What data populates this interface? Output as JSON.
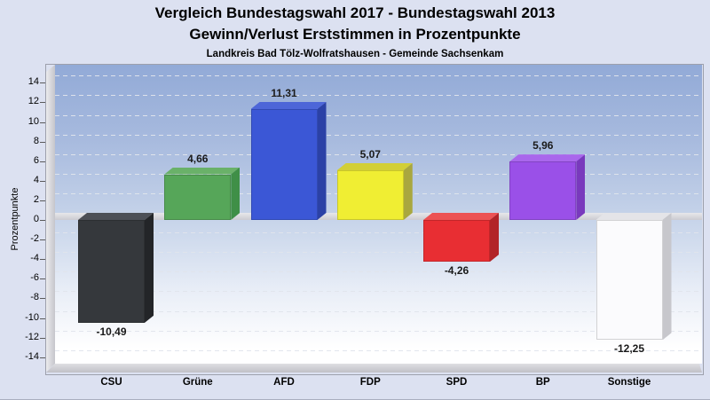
{
  "header": {
    "title_line1": "Vergleich Bundestagswahl 2017 - Bundestagswahl 2013",
    "title_line2": "Gewinn/Verlust Erststimmen in Prozentpunkte",
    "subtitle": "Landkreis Bad Tölz-Wolfratshausen - Gemeinde Sachsenkam"
  },
  "chart_data": {
    "type": "bar",
    "projection": "3d-column",
    "title": "Vergleich Bundestagswahl 2017 - Bundestagswahl 2013",
    "subtitle2": "Gewinn/Verlust Erststimmen in Prozentpunkte",
    "subtitle3": "Landkreis Bad Tölz-Wolfratshausen - Gemeinde Sachsenkam",
    "categories": [
      "CSU",
      "Grüne",
      "AFD",
      "FDP",
      "SPD",
      "BP",
      "Sonstige"
    ],
    "values": [
      -10.49,
      4.66,
      11.31,
      5.07,
      -4.26,
      5.96,
      -12.25
    ],
    "value_labels": [
      "-10,49",
      "4,66",
      "11,31",
      "5,07",
      "-4,26",
      "5,96",
      "-12,25"
    ],
    "ylabel": "Prozentpunkte",
    "xlabel": "",
    "y_ticks": [
      14,
      12,
      10,
      8,
      6,
      4,
      2,
      0,
      -2,
      -4,
      -6,
      -8,
      -10,
      -12,
      -14
    ],
    "ylim": [
      -15.2,
      15.2
    ],
    "grid": "dashed-horizontal",
    "legend": "none",
    "bar_styles": [
      {
        "party": "CSU",
        "slug": "csu",
        "front": "#35383c",
        "top": "#4d5057",
        "side": "#232528"
      },
      {
        "party": "Grüne",
        "slug": "gruene",
        "front": "#56a659",
        "top": "#6ab169",
        "side": "#3f8f47"
      },
      {
        "party": "AFD",
        "slug": "afd",
        "front": "#3b57d6",
        "top": "#4d66d8",
        "side": "#2b41a6"
      },
      {
        "party": "FDP",
        "slug": "fdp",
        "front": "#f0ee33",
        "top": "#d2cf36",
        "side": "#a9a73f"
      },
      {
        "party": "SPD",
        "slug": "spd",
        "front": "#e82e33",
        "top": "#ec5254",
        "side": "#b22428"
      },
      {
        "party": "BP",
        "slug": "bp",
        "front": "#9a50e8",
        "top": "#a967ec",
        "side": "#7939bd"
      },
      {
        "party": "Sonstige",
        "slug": "sonstige",
        "front": "#fbfbfd",
        "top": "#e4e4e8",
        "side": "#c7c7cc"
      }
    ],
    "colors": {
      "page_background": "#dce1f1",
      "plot_gradient_top": "#92aad7",
      "plot_gradient_bottom": "#ffffff",
      "zero_plane": "#d6d6da",
      "frame_border": "#9da0ac",
      "text": "#000000"
    }
  }
}
